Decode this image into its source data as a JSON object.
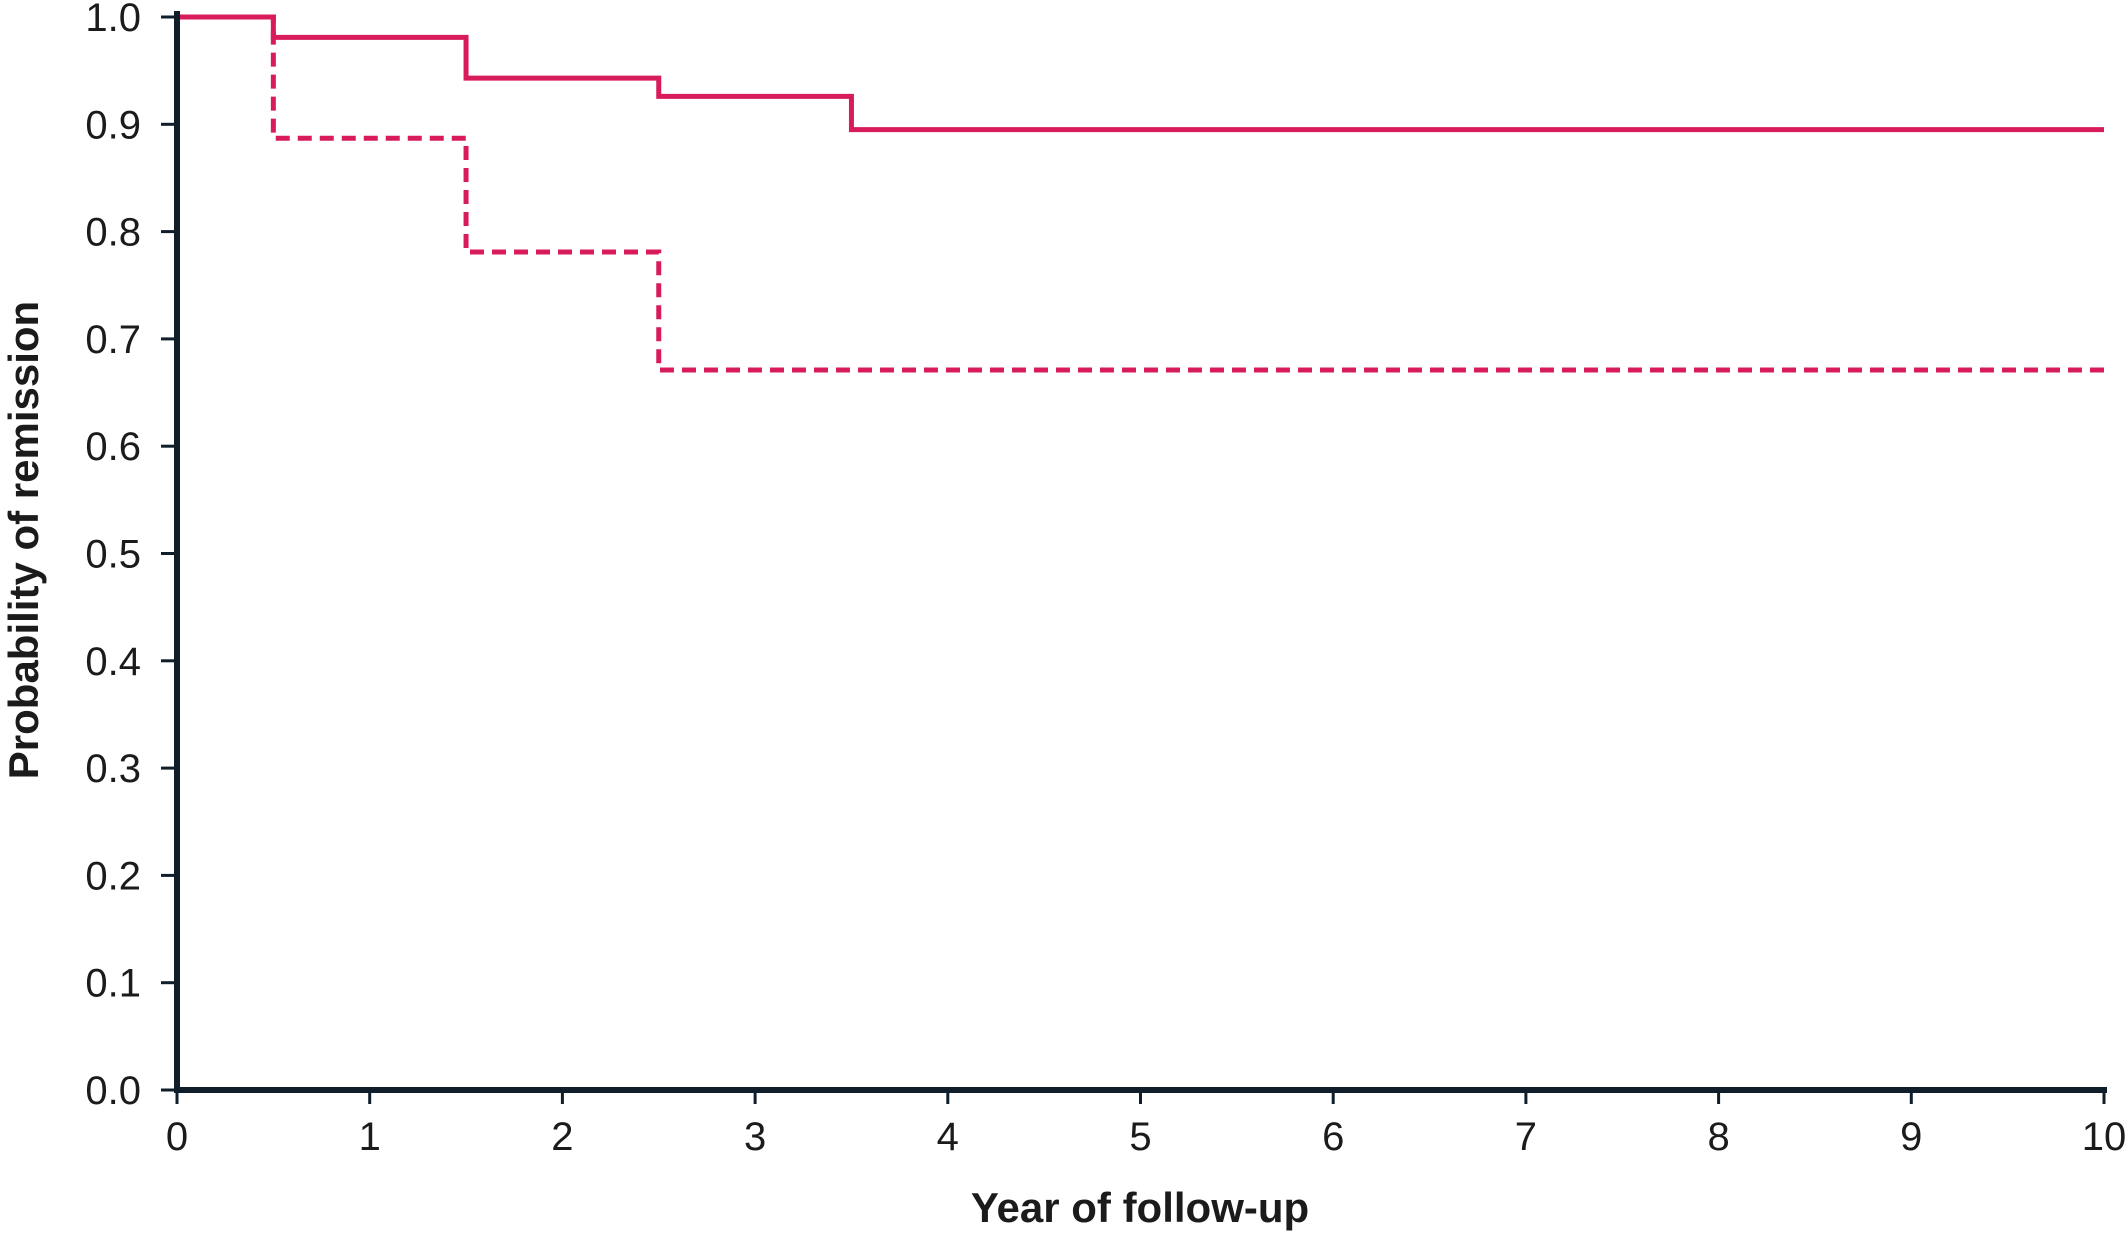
{
  "chart_data": {
    "type": "line",
    "step": true,
    "title": "",
    "xlabel": "Year of follow-up",
    "ylabel": "Probability of remission",
    "xlim": [
      0,
      10
    ],
    "ylim": [
      0,
      1
    ],
    "x_ticks": [
      0,
      1,
      2,
      3,
      4,
      5,
      6,
      7,
      8,
      9,
      10
    ],
    "x_tick_labels": [
      "0",
      "1",
      "2",
      "3",
      "4",
      "5",
      "6",
      "7",
      "8",
      "9",
      "10"
    ],
    "y_ticks": [
      0,
      0.1,
      0.2,
      0.3,
      0.4,
      0.5,
      0.6,
      0.7,
      0.8,
      0.9,
      1.0
    ],
    "y_tick_labels": [
      "0.0",
      "0.1",
      "0.2",
      "0.3",
      "0.4",
      "0.5",
      "0.6",
      "0.7",
      "0.8",
      "0.9",
      "1.0"
    ],
    "grid": false,
    "legend": false,
    "series": [
      {
        "style": "solid",
        "color": "#d81b5a",
        "x": [
          0,
          0.5,
          1.5,
          2.5,
          3.5,
          10
        ],
        "y": [
          1.0,
          0.981,
          0.943,
          0.926,
          0.895,
          0.895
        ]
      },
      {
        "style": "dashed",
        "color": "#d81b5a",
        "x": [
          0,
          0.5,
          1.5,
          2.5,
          10
        ],
        "y": [
          1.0,
          0.887,
          0.781,
          0.671,
          0.671
        ]
      }
    ]
  }
}
